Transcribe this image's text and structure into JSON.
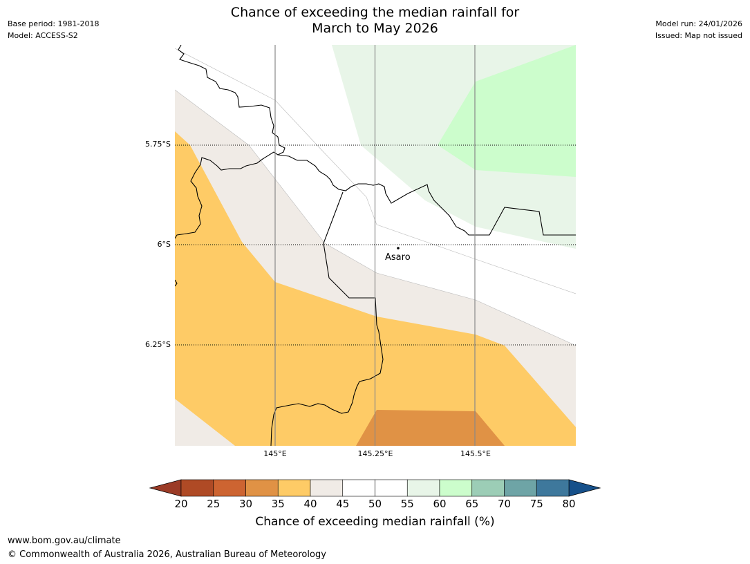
{
  "header": {
    "title_line1": "Chance of exceeding the median rainfall for",
    "title_line2": "March to May 2026",
    "base_period": "Base period: 1981-2018",
    "model": "Model: ACCESS-S2",
    "model_run": "Model run: 24/01/2026",
    "issued": "Issued: Map not issued"
  },
  "map": {
    "lat_labels": [
      "5.75°S",
      "6°S",
      "6.25°S"
    ],
    "lon_labels": [
      "145°E",
      "145.25°E",
      "145.5°E"
    ],
    "place": "Asaro",
    "colors": {
      "c35_40": "#fecb66",
      "c40_45": "#f0ebe6",
      "c30_35": "#e09245",
      "c55_60": "#e8f5e8",
      "c60_65": "#ccfdcc",
      "border": "#000000"
    }
  },
  "colorbar": {
    "label": "Chance of exceeding median rainfall (%)",
    "ticks": [
      "20",
      "25",
      "30",
      "35",
      "40",
      "45",
      "50",
      "55",
      "60",
      "65",
      "70",
      "75",
      "80"
    ],
    "low_extend_color": "#9b3b26",
    "high_extend_color": "#16508a",
    "segment_colors": [
      "#af4a25",
      "#cd6431",
      "#e09245",
      "#fecb66",
      "#f0ebe6",
      "#ffffff",
      "#ffffff",
      "#e8f5e8",
      "#ccfdcc",
      "#9ccdb6",
      "#6ea4a6",
      "#3e789c"
    ]
  },
  "footer": {
    "url": "www.bom.gov.au/climate",
    "copyright": "© Commonwealth of Australia 2026, Australian Bureau of Meteorology"
  }
}
